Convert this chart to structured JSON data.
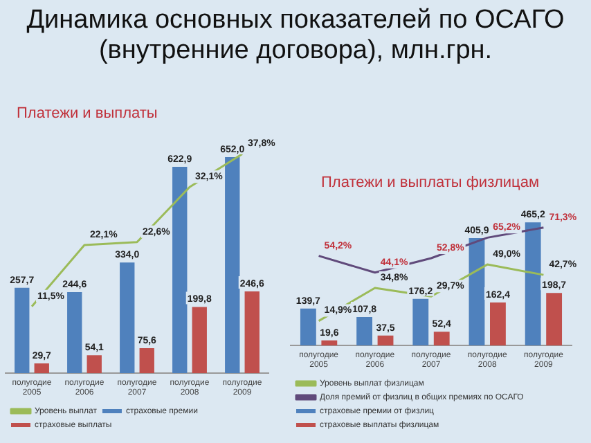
{
  "chart_data": [
    {
      "type": "bar",
      "title": "Динамика основных показателей по ОСАГО (внутренние договора), млн.грн.",
      "subtitle": "Платежи и выплаты",
      "categories": [
        "полугодие 2005",
        "полугодие 2006",
        "полугодие 2007",
        "полугодие 2008",
        "полугодие 2009"
      ],
      "series": [
        {
          "name": "страховые премии",
          "color": "#4f81bd",
          "values": [
            257.7,
            244.6,
            334.0,
            622.9,
            652.0
          ],
          "value_labels": [
            "257,7",
            "244,6",
            "334,0",
            "622,9",
            "652,0"
          ]
        },
        {
          "name": "страховые выплаты",
          "color": "#c0504d",
          "values": [
            29.7,
            54.1,
            75.6,
            199.8,
            246.6
          ],
          "value_labels": [
            "29,7",
            "54,1",
            "75,6",
            "199,8",
            "246,6"
          ]
        },
        {
          "name": "Уровень выплат",
          "type": "line",
          "axis": "y2",
          "color": "#9bbb59",
          "values": [
            11.5,
            22.1,
            22.6,
            32.1,
            37.8
          ],
          "value_labels": [
            "11,5%",
            "22,1%",
            "22,6%",
            "32,1%",
            "37,8%"
          ]
        }
      ],
      "tick_labels": "x",
      "grid": false,
      "legend": "bottom",
      "marker": "none"
    },
    {
      "type": "bar",
      "title": "Платежи и выплаты физлицам",
      "categories": [
        "полугодие 2005",
        "полугодие 2006",
        "полугодие 2007",
        "полугодие 2008",
        "полугодие 2009"
      ],
      "series": [
        {
          "name": "страховые премии от физлиц",
          "color": "#4f81bd",
          "values": [
            139.7,
            107.8,
            176.2,
            405.9,
            465.2
          ],
          "value_labels": [
            "139,7",
            "107,8",
            "176,2",
            "405,9",
            "465,2"
          ]
        },
        {
          "name": "страховые выплаты физлицам",
          "color": "#c0504d",
          "values": [
            19.6,
            37.5,
            52.4,
            162.4,
            198.7
          ],
          "value_labels": [
            "19,6",
            "37,5",
            "52,4",
            "162,4",
            "198,7"
          ]
        },
        {
          "name": "Уровень выплат физлицам",
          "type": "line",
          "axis": "y2",
          "color": "#9bbb59",
          "values": [
            14.9,
            34.8,
            29.7,
            49.0,
            42.7
          ],
          "value_labels": [
            "14,9%",
            "34,8%",
            "29,7%",
            "49,0%",
            "42,7%"
          ]
        },
        {
          "name": "Доля премий от физлиц в общих премиях по ОСАГО",
          "type": "line",
          "axis": "y2",
          "color": "#604a7b",
          "values": [
            54.2,
            44.1,
            52.8,
            65.2,
            71.3
          ],
          "value_labels": [
            "54,2%",
            "44,1%",
            "52,8%",
            "65,2%",
            "71,3%"
          ]
        }
      ],
      "tick_labels": "x",
      "grid": false,
      "legend": "bottom",
      "marker": "none"
    }
  ]
}
